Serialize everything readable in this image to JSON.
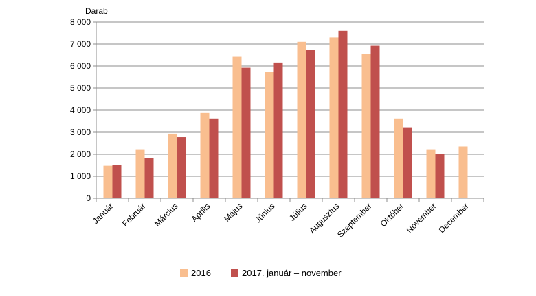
{
  "chart_data": {
    "type": "bar",
    "ylabel": "Darab",
    "ylim": [
      0,
      8000
    ],
    "yticks": [
      0,
      1000,
      2000,
      3000,
      4000,
      5000,
      6000,
      7000,
      8000
    ],
    "ytick_labels": [
      "0",
      "1 000",
      "2 000",
      "3 000",
      "4 000",
      "5 000",
      "6 000",
      "7 000",
      "8 000"
    ],
    "grid": true,
    "legend_position": "bottom",
    "categories": [
      "Január",
      "Február",
      "Március",
      "Április",
      "Május",
      "Június",
      "Július",
      "Augusztus",
      "Szeptember",
      "Október",
      "November",
      "December"
    ],
    "series": [
      {
        "name": "2016",
        "color": "#F9BE8F",
        "values": [
          1480,
          2200,
          2940,
          3880,
          6420,
          5740,
          7100,
          7300,
          6560,
          3600,
          2200,
          2360
        ]
      },
      {
        "name": "2017. január – november",
        "color": "#C0504D",
        "values": [
          1520,
          1830,
          2780,
          3600,
          5920,
          6160,
          6720,
          7600,
          6920,
          3200,
          2000,
          null
        ]
      }
    ]
  }
}
